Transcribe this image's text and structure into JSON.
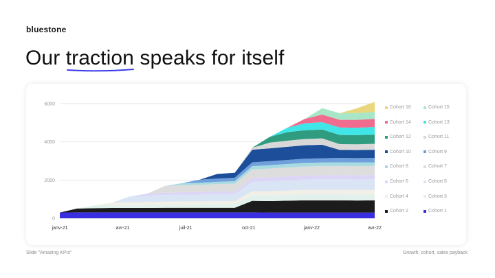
{
  "brand": {
    "logo_text": "bluestone",
    "accent": "#3b3be8"
  },
  "slide": {
    "title_before": "Our ",
    "title_highlight": "traction",
    "title_after": " speaks for itself"
  },
  "footer": {
    "left": "Slide \"Amazing KPIs\"",
    "right": "Growth, cohort, sales payback"
  },
  "chart_data": {
    "type": "area",
    "stacked": true,
    "title": "",
    "xlabel": "",
    "ylabel": "",
    "ylim": [
      0,
      6000
    ],
    "y_ticks": [
      0,
      2000,
      4000,
      6000
    ],
    "grid": true,
    "legend_position": "right",
    "x_tick_labels": [
      "janv-21",
      "avr-21",
      "juil-21",
      "oct-21",
      "janv-22",
      "avr-22"
    ],
    "series": [
      {
        "name": "Cohort 1",
        "color": "#3a2fe0",
        "values": [
          300,
          310,
          310,
          310,
          310,
          310,
          310,
          310,
          310,
          310,
          310,
          310,
          300,
          300,
          300,
          300,
          300,
          300,
          300
        ]
      },
      {
        "name": "Cohort 2",
        "color": "#1c1c1c",
        "values": [
          0,
          200,
          220,
          230,
          230,
          230,
          240,
          240,
          240,
          240,
          240,
          600,
          600,
          620,
          640,
          640,
          640,
          630,
          640
        ]
      },
      {
        "name": "Cohort 3",
        "color": "#e3f1ec",
        "values": [
          0,
          0,
          150,
          160,
          170,
          170,
          180,
          180,
          180,
          190,
          190,
          300,
          310,
          320,
          330,
          330,
          330,
          330,
          330
        ]
      },
      {
        "name": "Cohort 4",
        "color": "#f2efe6",
        "values": [
          0,
          0,
          0,
          120,
          130,
          140,
          140,
          150,
          150,
          150,
          160,
          200,
          210,
          210,
          220,
          220,
          220,
          220,
          220
        ]
      },
      {
        "name": "Cohort 5",
        "color": "#d9e4f5",
        "values": [
          0,
          0,
          0,
          0,
          300,
          330,
          350,
          360,
          360,
          370,
          370,
          500,
          520,
          530,
          540,
          550,
          550,
          550,
          550
        ]
      },
      {
        "name": "Cohort 6",
        "color": "#dcd5f6",
        "values": [
          0,
          0,
          0,
          0,
          0,
          110,
          120,
          130,
          130,
          140,
          140,
          200,
          200,
          210,
          210,
          210,
          220,
          220,
          220
        ]
      },
      {
        "name": "Cohort 7",
        "color": "#dddddd",
        "values": [
          0,
          0,
          0,
          0,
          0,
          0,
          350,
          370,
          380,
          390,
          400,
          450,
          460,
          470,
          470,
          480,
          480,
          480,
          480
        ]
      },
      {
        "name": "Cohort 8",
        "color": "#a8dbe1",
        "values": [
          0,
          0,
          0,
          0,
          0,
          0,
          0,
          100,
          110,
          120,
          130,
          170,
          180,
          180,
          190,
          190,
          190,
          190,
          190
        ]
      },
      {
        "name": "Cohort 9",
        "color": "#6fa0dc",
        "values": [
          0,
          0,
          0,
          0,
          0,
          0,
          0,
          0,
          160,
          170,
          180,
          200,
          210,
          210,
          220,
          220,
          230,
          230,
          230
        ]
      },
      {
        "name": "Cohort 10",
        "color": "#1c4e9a",
        "values": [
          0,
          0,
          0,
          0,
          0,
          0,
          0,
          0,
          0,
          240,
          260,
          660,
          670,
          690,
          700,
          710,
          420,
          420,
          430
        ]
      },
      {
        "name": "Cohort 11",
        "color": "#d8d8d8",
        "values": [
          0,
          0,
          0,
          0,
          0,
          0,
          0,
          0,
          0,
          0,
          0,
          100,
          300,
          320,
          330,
          330,
          300,
          300,
          310
        ]
      },
      {
        "name": "Cohort 12",
        "color": "#2f9c7f",
        "values": [
          0,
          0,
          0,
          0,
          0,
          0,
          0,
          0,
          0,
          0,
          0,
          0,
          300,
          450,
          460,
          470,
          480,
          480,
          480
        ]
      },
      {
        "name": "Cohort 13",
        "color": "#3fe5e7",
        "values": [
          0,
          0,
          0,
          0,
          0,
          0,
          0,
          0,
          0,
          0,
          0,
          0,
          0,
          230,
          360,
          380,
          390,
          390,
          400
        ]
      },
      {
        "name": "Cohort 14",
        "color": "#f06b8e",
        "values": [
          0,
          0,
          0,
          0,
          0,
          0,
          0,
          0,
          0,
          0,
          0,
          0,
          0,
          0,
          230,
          400,
          400,
          410,
          420
        ]
      },
      {
        "name": "Cohort 15",
        "color": "#a7e6c6",
        "values": [
          0,
          0,
          0,
          0,
          0,
          0,
          0,
          0,
          0,
          0,
          0,
          0,
          0,
          0,
          0,
          330,
          350,
          360,
          370
        ]
      },
      {
        "name": "Cohort 16",
        "color": "#e9d67d",
        "values": [
          0,
          0,
          0,
          0,
          0,
          0,
          0,
          0,
          0,
          0,
          0,
          0,
          0,
          0,
          0,
          0,
          0,
          250,
          520
        ]
      }
    ]
  }
}
